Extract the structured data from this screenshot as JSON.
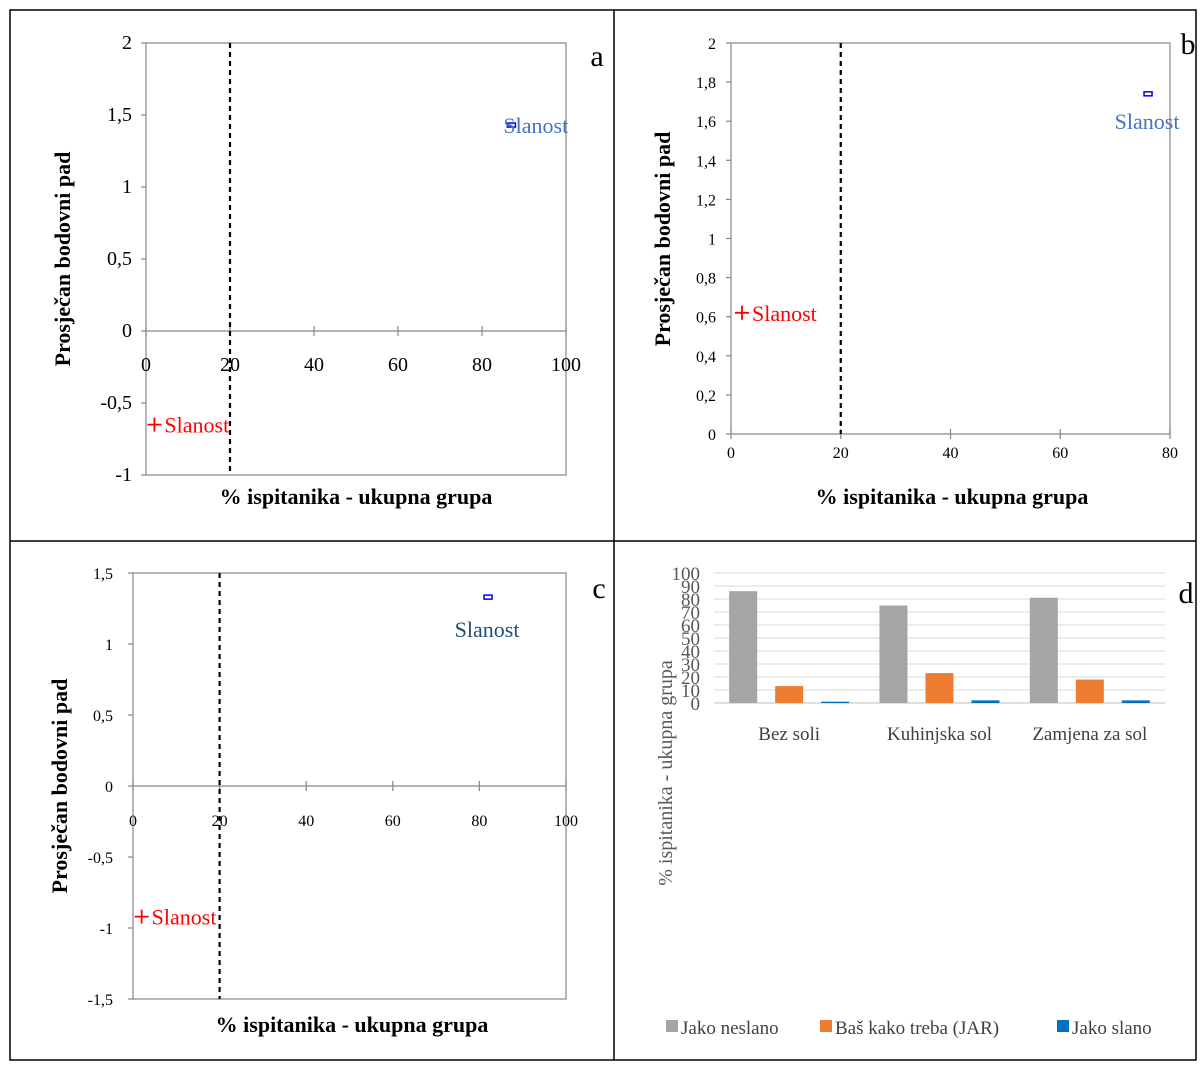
{
  "panels": [
    {
      "letter": "a",
      "chart_data": {
        "type": "scatter",
        "xlabel": "% ispitanika - ukupna grupa",
        "ylabel": "Prosječan bodovni pad",
        "xlim": [
          0,
          100
        ],
        "ylim": [
          -1,
          2
        ],
        "xticks": [
          "0",
          "20",
          "40",
          "60",
          "80",
          "100"
        ],
        "yticks": [
          "2",
          "1,5",
          "1",
          "0,5",
          "0",
          "-0,5",
          "-1"
        ],
        "threshold_x": 20,
        "points": [
          {
            "label": "Slanost",
            "x": 2,
            "y": -0.65,
            "marker": "plus",
            "color": "#ff0000"
          },
          {
            "label": "Slanost",
            "x": 87,
            "y": 1.43,
            "marker": "square",
            "color": "#4472c4"
          }
        ]
      }
    },
    {
      "letter": "b",
      "chart_data": {
        "type": "scatter",
        "xlabel": "% ispitanika - ukupna grupa",
        "ylabel": "Prosječan bodovni pad",
        "xlim": [
          0,
          80
        ],
        "ylim": [
          0,
          2
        ],
        "xticks": [
          "0",
          "20",
          "40",
          "60",
          "80"
        ],
        "yticks": [
          "2",
          "1,8",
          "1,6",
          "1,4",
          "1,2",
          "1",
          "0,8",
          "0,6",
          "0,4",
          "0,2",
          "0"
        ],
        "threshold_x": 20,
        "points": [
          {
            "label": "Slanost",
            "x": 2,
            "y": 0.62,
            "marker": "plus",
            "color": "#ff0000"
          },
          {
            "label": "Slanost",
            "x": 76,
            "y": 1.74,
            "marker": "square",
            "color": "#4472c4"
          }
        ]
      }
    },
    {
      "letter": "c",
      "chart_data": {
        "type": "scatter",
        "xlabel": "% ispitanika - ukupna grupa",
        "ylabel": "Prosječan bodovni pad",
        "xlim": [
          0,
          100
        ],
        "ylim": [
          -1.5,
          1.5
        ],
        "xticks": [
          "0",
          "20",
          "40",
          "60",
          "80",
          "100"
        ],
        "yticks": [
          "1,5",
          "1",
          "0,5",
          "0",
          "-0,5",
          "-1",
          "-1,5"
        ],
        "threshold_x": 20,
        "points": [
          {
            "label": "Slanost",
            "x": 2,
            "y": -0.92,
            "marker": "plus",
            "color": "#ff0000"
          },
          {
            "label": "Slanost",
            "x": 82,
            "y": 1.33,
            "marker": "square",
            "color": "#1f4e79"
          }
        ]
      }
    },
    {
      "letter": "d",
      "chart_data": {
        "type": "bar",
        "ylabel": "% ispitanika - ukupna grupa",
        "ylim": [
          0,
          100
        ],
        "yticks": [
          "100",
          "90",
          "80",
          "70",
          "60",
          "50",
          "40",
          "30",
          "20",
          "10",
          "0"
        ],
        "categories": [
          "Bez soli",
          "Kuhinjska sol",
          "Zamjena za sol"
        ],
        "series": [
          {
            "name": "Jako neslano",
            "color": "#a5a5a5",
            "values": [
              86,
              75,
              81
            ]
          },
          {
            "name": "Baš kako treba (JAR)",
            "color": "#ed7d31",
            "values": [
              13,
              23,
              18
            ]
          },
          {
            "name": "Jako slano",
            "color": "#0070c0",
            "values": [
              1,
              2,
              2
            ]
          }
        ],
        "legend": "bottom"
      }
    }
  ]
}
